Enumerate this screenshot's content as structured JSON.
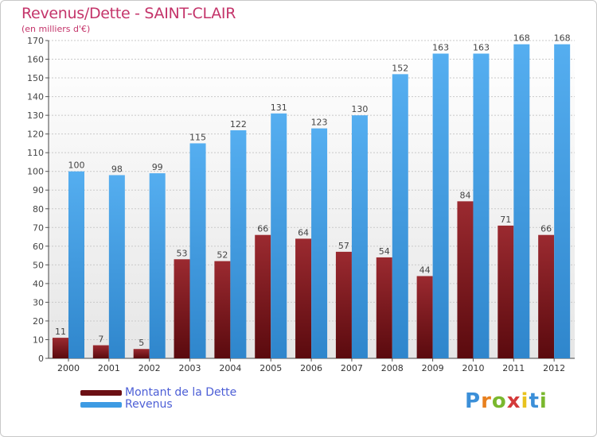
{
  "header": {
    "title": "Revenus/Dette - SAINT-CLAIR",
    "subtitle": "(en milliers d'€)"
  },
  "chart_data": {
    "type": "bar",
    "title": "Revenus/Dette - SAINT-CLAIR",
    "ylabel": "(en milliers d'€)",
    "xlabel": "",
    "ylim": [
      0,
      170
    ],
    "ytick_step": 10,
    "grid": true,
    "legend_position": "bottom-left",
    "categories": [
      "2000",
      "2001",
      "2002",
      "2003",
      "2004",
      "2005",
      "2006",
      "2007",
      "2008",
      "2009",
      "2010",
      "2011",
      "2012"
    ],
    "series": [
      {
        "name": "Montant de la Dette",
        "color": "#7a1a1f",
        "values": [
          11,
          7,
          5,
          53,
          52,
          66,
          64,
          57,
          54,
          44,
          84,
          71,
          66
        ]
      },
      {
        "name": "Revenus",
        "color": "#3d9be3",
        "values": [
          100,
          98,
          99,
          115,
          122,
          131,
          123,
          130,
          152,
          163,
          163,
          168,
          168
        ]
      }
    ]
  },
  "legend": {
    "items": [
      {
        "label": "Montant de la Dette",
        "color": "#6b0f14"
      },
      {
        "label": "Revenus",
        "color": "#3d9be3"
      }
    ]
  },
  "logo": {
    "letters": [
      "P",
      "r",
      "o",
      "x",
      "i",
      "t",
      "i"
    ],
    "colors": [
      "#3b8fd8",
      "#e8801e",
      "#7ab82e",
      "#d43a3a",
      "#e8c21e",
      "#3b8fd8",
      "#7ab82e"
    ]
  }
}
